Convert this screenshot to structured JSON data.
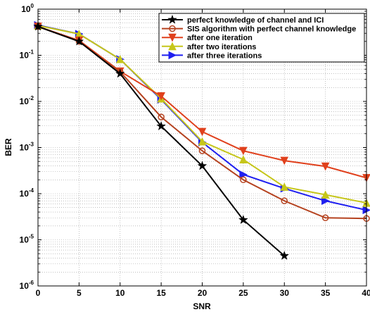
{
  "chart_data": {
    "type": "line",
    "xlabel": "SNR",
    "ylabel": "BER",
    "yscale": "log",
    "xlim": [
      0,
      40
    ],
    "ylim": [
      1e-06,
      1
    ],
    "xticks": [
      0,
      5,
      10,
      15,
      20,
      25,
      30,
      35,
      40
    ],
    "yticks": [
      {
        "value": 1e-06,
        "exp": "-6"
      },
      {
        "value": 1e-05,
        "exp": "-5"
      },
      {
        "value": 0.0001,
        "exp": "-4"
      },
      {
        "value": 0.001,
        "exp": "-3"
      },
      {
        "value": 0.01,
        "exp": "-2"
      },
      {
        "value": 0.1,
        "exp": "-1"
      },
      {
        "value": 1,
        "exp": "0"
      }
    ],
    "tick_base": "10",
    "grid": true,
    "legend_position": "top-right",
    "series": [
      {
        "name": "perfect knowledge of channel and ICI",
        "color": "#000000",
        "marker": "star",
        "x": [
          0,
          5,
          10,
          15,
          20,
          25,
          30
        ],
        "y": [
          0.42,
          0.2,
          0.04,
          0.0029,
          0.0004,
          2.7e-05,
          4.5e-06
        ]
      },
      {
        "name": "SIS algorithm with perfect channel knowledge",
        "color": "#b5421f",
        "marker": "circle",
        "x": [
          0,
          5,
          10,
          15,
          20,
          25,
          30,
          35,
          40
        ],
        "y": [
          0.42,
          0.2,
          0.044,
          0.0046,
          0.00085,
          0.0002,
          7e-05,
          3e-05,
          2.9e-05
        ]
      },
      {
        "name": "after one iteration",
        "color": "#e0401c",
        "marker": "triangle-down",
        "x": [
          0,
          5,
          10,
          15,
          20,
          25,
          30,
          35,
          40
        ],
        "y": [
          0.42,
          0.21,
          0.045,
          0.013,
          0.0022,
          0.00085,
          0.00052,
          0.00039,
          0.00022
        ]
      },
      {
        "name": "after two iterations",
        "color": "#c6c61a",
        "marker": "triangle-up",
        "x": [
          0,
          5,
          10,
          15,
          20,
          25,
          30,
          35,
          40
        ],
        "y": [
          0.44,
          0.29,
          0.082,
          0.0115,
          0.00135,
          0.00055,
          0.00014,
          9.5e-05,
          6.3e-05
        ]
      },
      {
        "name": "after three iterations",
        "color": "#1f1ff0",
        "marker": "triangle-right",
        "x": [
          0,
          5,
          10,
          15,
          20,
          25,
          30,
          35,
          40
        ],
        "y": [
          0.45,
          0.29,
          0.082,
          0.011,
          0.0013,
          0.00026,
          0.00013,
          7e-05,
          4.4e-05
        ]
      }
    ]
  }
}
